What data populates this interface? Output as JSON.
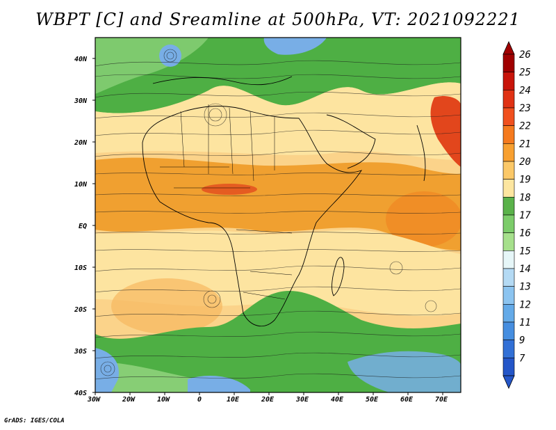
{
  "title": "WBPT [C] and Sreamline at 500hPa, VT: 2021092221",
  "credit": "GrADS: IGES/COLA",
  "axes": {
    "lat_ticks": [
      "40N",
      "30N",
      "20N",
      "10N",
      "EQ",
      "10S",
      "20S",
      "30S",
      "40S"
    ],
    "lon_ticks": [
      "30W",
      "20W",
      "10W",
      "0",
      "10E",
      "20E",
      "30E",
      "40E",
      "50E",
      "60E",
      "70E"
    ]
  },
  "colorbar": {
    "levels": [
      "26",
      "25",
      "24",
      "23",
      "22",
      "21",
      "20",
      "19",
      "18",
      "17",
      "16",
      "15",
      "14",
      "13",
      "12",
      "11",
      "9",
      "7"
    ],
    "colors": [
      "#a00000",
      "#c8140a",
      "#e03214",
      "#f0501e",
      "#f57a1e",
      "#f8a030",
      "#fbc868",
      "#fde6a0",
      "#5ab24a",
      "#7ccc6a",
      "#a6e08c",
      "#e6f6f8",
      "#b4daf4",
      "#8cc4f0",
      "#64aae8",
      "#468ee0",
      "#3270d6",
      "#2456c8"
    ]
  },
  "regions": {
    "warm_band": "#f0a030",
    "hot_spot": "#e2461c",
    "pale_band": "#fde4a0",
    "cool_green": "#4eaf44",
    "light_green": "#9fdc8a",
    "cold_blue": "#78aee6"
  }
}
